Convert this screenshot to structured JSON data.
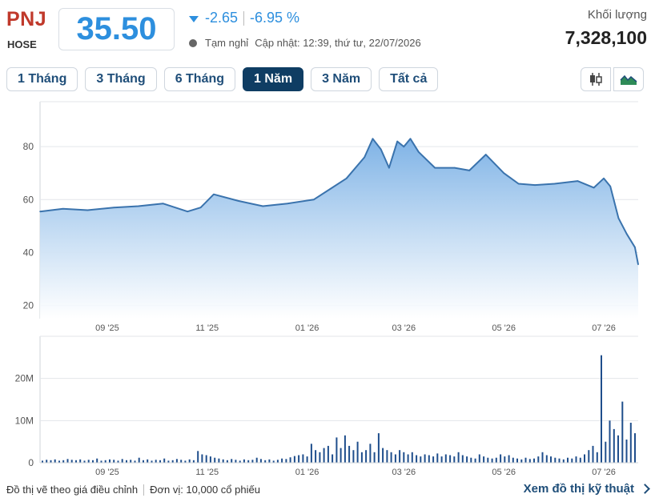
{
  "stock": {
    "ticker": "PNJ",
    "exchange": "HOSE",
    "price": "35.50",
    "change": "-2.65",
    "change_pct": "-6.95 %",
    "status": "Tạm nghỉ",
    "update_label": "Cập nhật: 12:39, thứ tư, 22/07/2026",
    "volume_label": "Khối lượng",
    "volume_value": "7,328,100"
  },
  "tabs": [
    {
      "label": "1 Tháng",
      "active": false
    },
    {
      "label": "3 Tháng",
      "active": false
    },
    {
      "label": "6 Tháng",
      "active": false
    },
    {
      "label": "1 Năm",
      "active": true
    },
    {
      "label": "3 Năm",
      "active": false
    },
    {
      "label": "Tất cả",
      "active": false
    }
  ],
  "chart_type_icons": [
    "candlestick-icon",
    "area-chart-icon"
  ],
  "footer": {
    "note": "Đồ thị vẽ theo giá điều chỉnh",
    "unit": "Đơn vị: 10,000 cổ phiếu",
    "technical_link": "Xem đồ thị kỹ thuật"
  },
  "colors": {
    "accent": "#2d8fde",
    "price_line": "#3a73ad",
    "area_top": "#7fb3e6",
    "volume_bar": "#1f4e8c",
    "ticker_red": "#c0392b",
    "active_tab": "#0f3d63"
  },
  "chart_data": [
    {
      "type": "area",
      "title": "",
      "xlabel": "",
      "ylabel": "",
      "ylim": [
        15,
        97
      ],
      "y_ticks": [
        20,
        40,
        60,
        80
      ],
      "x_ticks": [
        "09 '25",
        "11 '25",
        "01 '26",
        "03 '26",
        "05 '26",
        "07 '26"
      ],
      "grid": true,
      "x": [
        "2025-07-22",
        "2025-08-05",
        "2025-08-20",
        "2025-09-05",
        "2025-09-20",
        "2025-10-05",
        "2025-10-20",
        "2025-10-28",
        "2025-11-05",
        "2025-11-20",
        "2025-12-05",
        "2025-12-20",
        "2026-01-05",
        "2026-01-15",
        "2026-01-25",
        "2026-02-05",
        "2026-02-10",
        "2026-02-15",
        "2026-02-20",
        "2026-02-25",
        "2026-03-01",
        "2026-03-05",
        "2026-03-10",
        "2026-03-20",
        "2026-04-01",
        "2026-04-10",
        "2026-04-20",
        "2026-05-01",
        "2026-05-10",
        "2026-05-20",
        "2026-06-01",
        "2026-06-15",
        "2026-06-25",
        "2026-07-01",
        "2026-07-05",
        "2026-07-10",
        "2026-07-15",
        "2026-07-20",
        "2026-07-22"
      ],
      "series": [
        {
          "values": [
            55.5,
            56.5,
            56,
            57,
            57.5,
            58.5,
            55.5,
            57,
            62,
            59.5,
            57.5,
            58.5,
            60,
            64,
            68,
            76,
            83,
            79,
            72,
            82,
            80,
            83,
            78,
            72,
            72,
            71,
            77,
            70,
            66,
            65.5,
            66,
            67,
            64.5,
            68,
            65,
            53,
            47,
            42,
            35.5
          ]
        }
      ]
    },
    {
      "type": "bar",
      "title": "",
      "ylabel": "",
      "ylim": [
        0,
        30
      ],
      "y_ticks": [
        "0",
        "10M",
        "20M"
      ],
      "x_ticks": [
        "09 '25",
        "11 '25",
        "01 '26",
        "03 '26",
        "05 '26",
        "07 '26"
      ],
      "series": [
        {
          "values": [
            0.5,
            0.7,
            0.6,
            0.8,
            0.5,
            0.6,
            0.9,
            0.7,
            0.6,
            0.8,
            0.5,
            0.7,
            0.6,
            1.0,
            0.5,
            0.6,
            0.8,
            0.7,
            0.5,
            0.9,
            0.6,
            0.7,
            0.5,
            1.2,
            0.6,
            0.8,
            0.5,
            0.7,
            0.6,
            1.0,
            0.5,
            0.6,
            0.9,
            0.7,
            0.5,
            0.8,
            0.6,
            2.8,
            2.0,
            1.8,
            1.5,
            1.2,
            1.0,
            0.8,
            0.6,
            0.9,
            0.7,
            0.5,
            0.8,
            0.6,
            0.7,
            1.2,
            0.9,
            0.6,
            0.8,
            0.5,
            0.7,
            1.0,
            0.9,
            1.3,
            1.6,
            1.8,
            2.0,
            1.5,
            4.5,
            3.0,
            2.5,
            3.5,
            4.0,
            2.0,
            6.0,
            3.5,
            6.5,
            4.0,
            3.0,
            5.0,
            2.5,
            3.0,
            4.5,
            2.5,
            7.0,
            3.5,
            3.0,
            2.5,
            2.0,
            3.0,
            2.5,
            2.0,
            2.5,
            1.8,
            1.5,
            2.0,
            1.8,
            1.5,
            2.2,
            1.5,
            2.0,
            1.8,
            1.5,
            2.5,
            1.8,
            1.5,
            1.2,
            1.0,
            2.0,
            1.5,
            1.2,
            1.0,
            1.2,
            2.0,
            1.5,
            1.8,
            1.2,
            1.0,
            0.8,
            1.2,
            0.9,
            1.0,
            1.5,
            2.5,
            1.8,
            1.5,
            1.2,
            1.0,
            0.8,
            1.2,
            1.0,
            1.5,
            1.2,
            2.0,
            3.0,
            4.0,
            2.5,
            25.5,
            5.0,
            10.0,
            8.0,
            6.5,
            14.5,
            5.5,
            9.5,
            7.0
          ]
        }
      ]
    }
  ]
}
